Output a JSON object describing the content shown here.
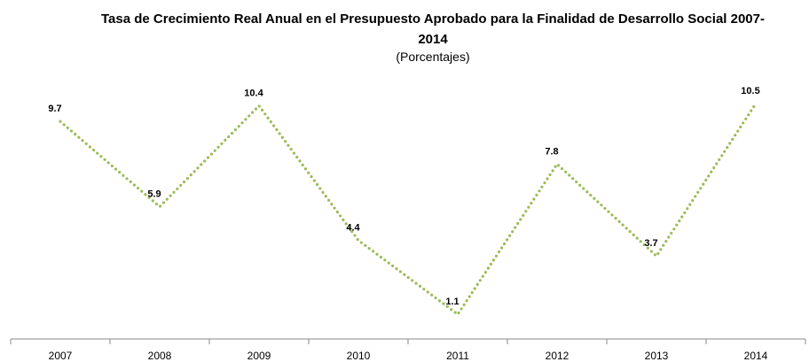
{
  "chart_data": {
    "type": "line",
    "title": "Tasa de Crecimiento Real Anual en el Presupuesto Aprobado para la Finalidad de Desarrollo Social 2007-2014",
    "subtitle": "(Porcentajes)",
    "categories": [
      "2007",
      "2008",
      "2009",
      "2010",
      "2011",
      "2012",
      "2013",
      "2014"
    ],
    "values": [
      9.7,
      5.9,
      10.4,
      4.4,
      1.1,
      7.8,
      3.7,
      10.5
    ],
    "color": "#9bbb59"
  }
}
